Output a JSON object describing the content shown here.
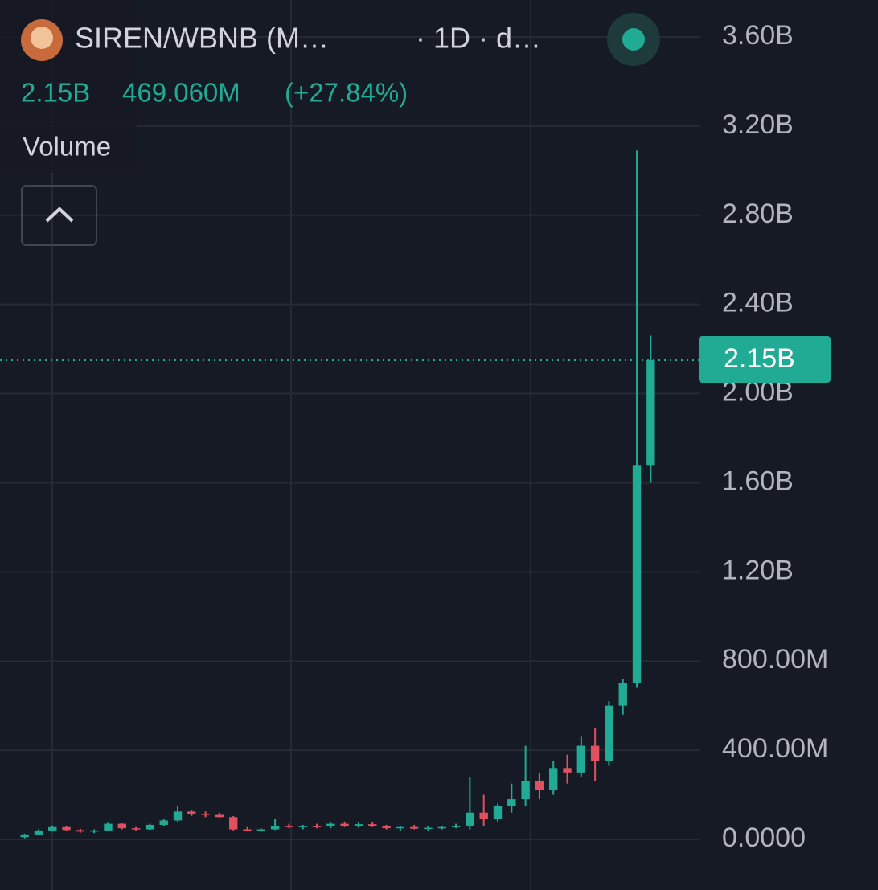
{
  "chart_data": {
    "type": "candlestick",
    "title": "SIREN/WBNB (M…",
    "subtitle": "· 1D · d…",
    "last": "2.15B",
    "change": "469.060M",
    "change_percent": "(+27.84%)",
    "pane_label": "Volume",
    "up_color": "#22ab94",
    "down_color": "#e0505e",
    "grid": true,
    "ylim": [
      0,
      3600000000
    ],
    "yticks": [
      {
        "value": 0,
        "label": "0.0000"
      },
      {
        "value": 400000000,
        "label": "400.00M"
      },
      {
        "value": 800000000,
        "label": "800.00M"
      },
      {
        "value": 1200000000,
        "label": "1.20B"
      },
      {
        "value": 1600000000,
        "label": "1.60B"
      },
      {
        "value": 2000000000,
        "label": "2.00B"
      },
      {
        "value": 2400000000,
        "label": "2.40B"
      },
      {
        "value": 2800000000,
        "label": "2.80B"
      },
      {
        "value": 3200000000,
        "label": "3.20B"
      },
      {
        "value": 3600000000,
        "label": "3.60B"
      }
    ],
    "price_line": {
      "value": 2150000000,
      "label": "2.15B"
    },
    "open": [
      10000000,
      22000000,
      40000000,
      55000000,
      42000000,
      35000000,
      40000000,
      70000000,
      50000000,
      45000000,
      65000000,
      85000000,
      125000000,
      115000000,
      110000000,
      100000000,
      45000000,
      40000000,
      45000000,
      60000000,
      55000000,
      60000000,
      58000000,
      70000000,
      60000000,
      68000000,
      60000000,
      50000000,
      55000000,
      48000000,
      52000000,
      55000000,
      60000000,
      120000000,
      90000000,
      150000000,
      180000000,
      260000000,
      220000000,
      320000000,
      300000000,
      420000000,
      350000000,
      600000000,
      700000000,
      1680000000
    ],
    "high": [
      25000000,
      45000000,
      62000000,
      60000000,
      48000000,
      45000000,
      75000000,
      72000000,
      55000000,
      70000000,
      90000000,
      150000000,
      130000000,
      125000000,
      120000000,
      105000000,
      55000000,
      50000000,
      90000000,
      70000000,
      65000000,
      70000000,
      75000000,
      80000000,
      75000000,
      78000000,
      65000000,
      60000000,
      65000000,
      58000000,
      60000000,
      70000000,
      280000000,
      200000000,
      160000000,
      250000000,
      420000000,
      300000000,
      350000000,
      380000000,
      460000000,
      500000000,
      620000000,
      720000000,
      3090000000,
      2260000000
    ],
    "low": [
      5000000,
      18000000,
      35000000,
      38000000,
      30000000,
      28000000,
      38000000,
      45000000,
      40000000,
      42000000,
      60000000,
      80000000,
      105000000,
      100000000,
      95000000,
      40000000,
      35000000,
      35000000,
      42000000,
      50000000,
      45000000,
      50000000,
      50000000,
      55000000,
      52000000,
      55000000,
      45000000,
      40000000,
      45000000,
      40000000,
      45000000,
      50000000,
      45000000,
      60000000,
      80000000,
      120000000,
      150000000,
      180000000,
      200000000,
      250000000,
      280000000,
      260000000,
      330000000,
      560000000,
      680000000,
      1600000000
    ],
    "close": [
      22000000,
      40000000,
      55000000,
      42000000,
      35000000,
      40000000,
      70000000,
      50000000,
      45000000,
      65000000,
      85000000,
      125000000,
      115000000,
      110000000,
      100000000,
      45000000,
      40000000,
      45000000,
      60000000,
      55000000,
      60000000,
      58000000,
      70000000,
      60000000,
      68000000,
      60000000,
      50000000,
      55000000,
      48000000,
      52000000,
      55000000,
      60000000,
      120000000,
      90000000,
      150000000,
      180000000,
      260000000,
      220000000,
      320000000,
      300000000,
      420000000,
      350000000,
      600000000,
      700000000,
      1680000000,
      2150000000
    ]
  }
}
